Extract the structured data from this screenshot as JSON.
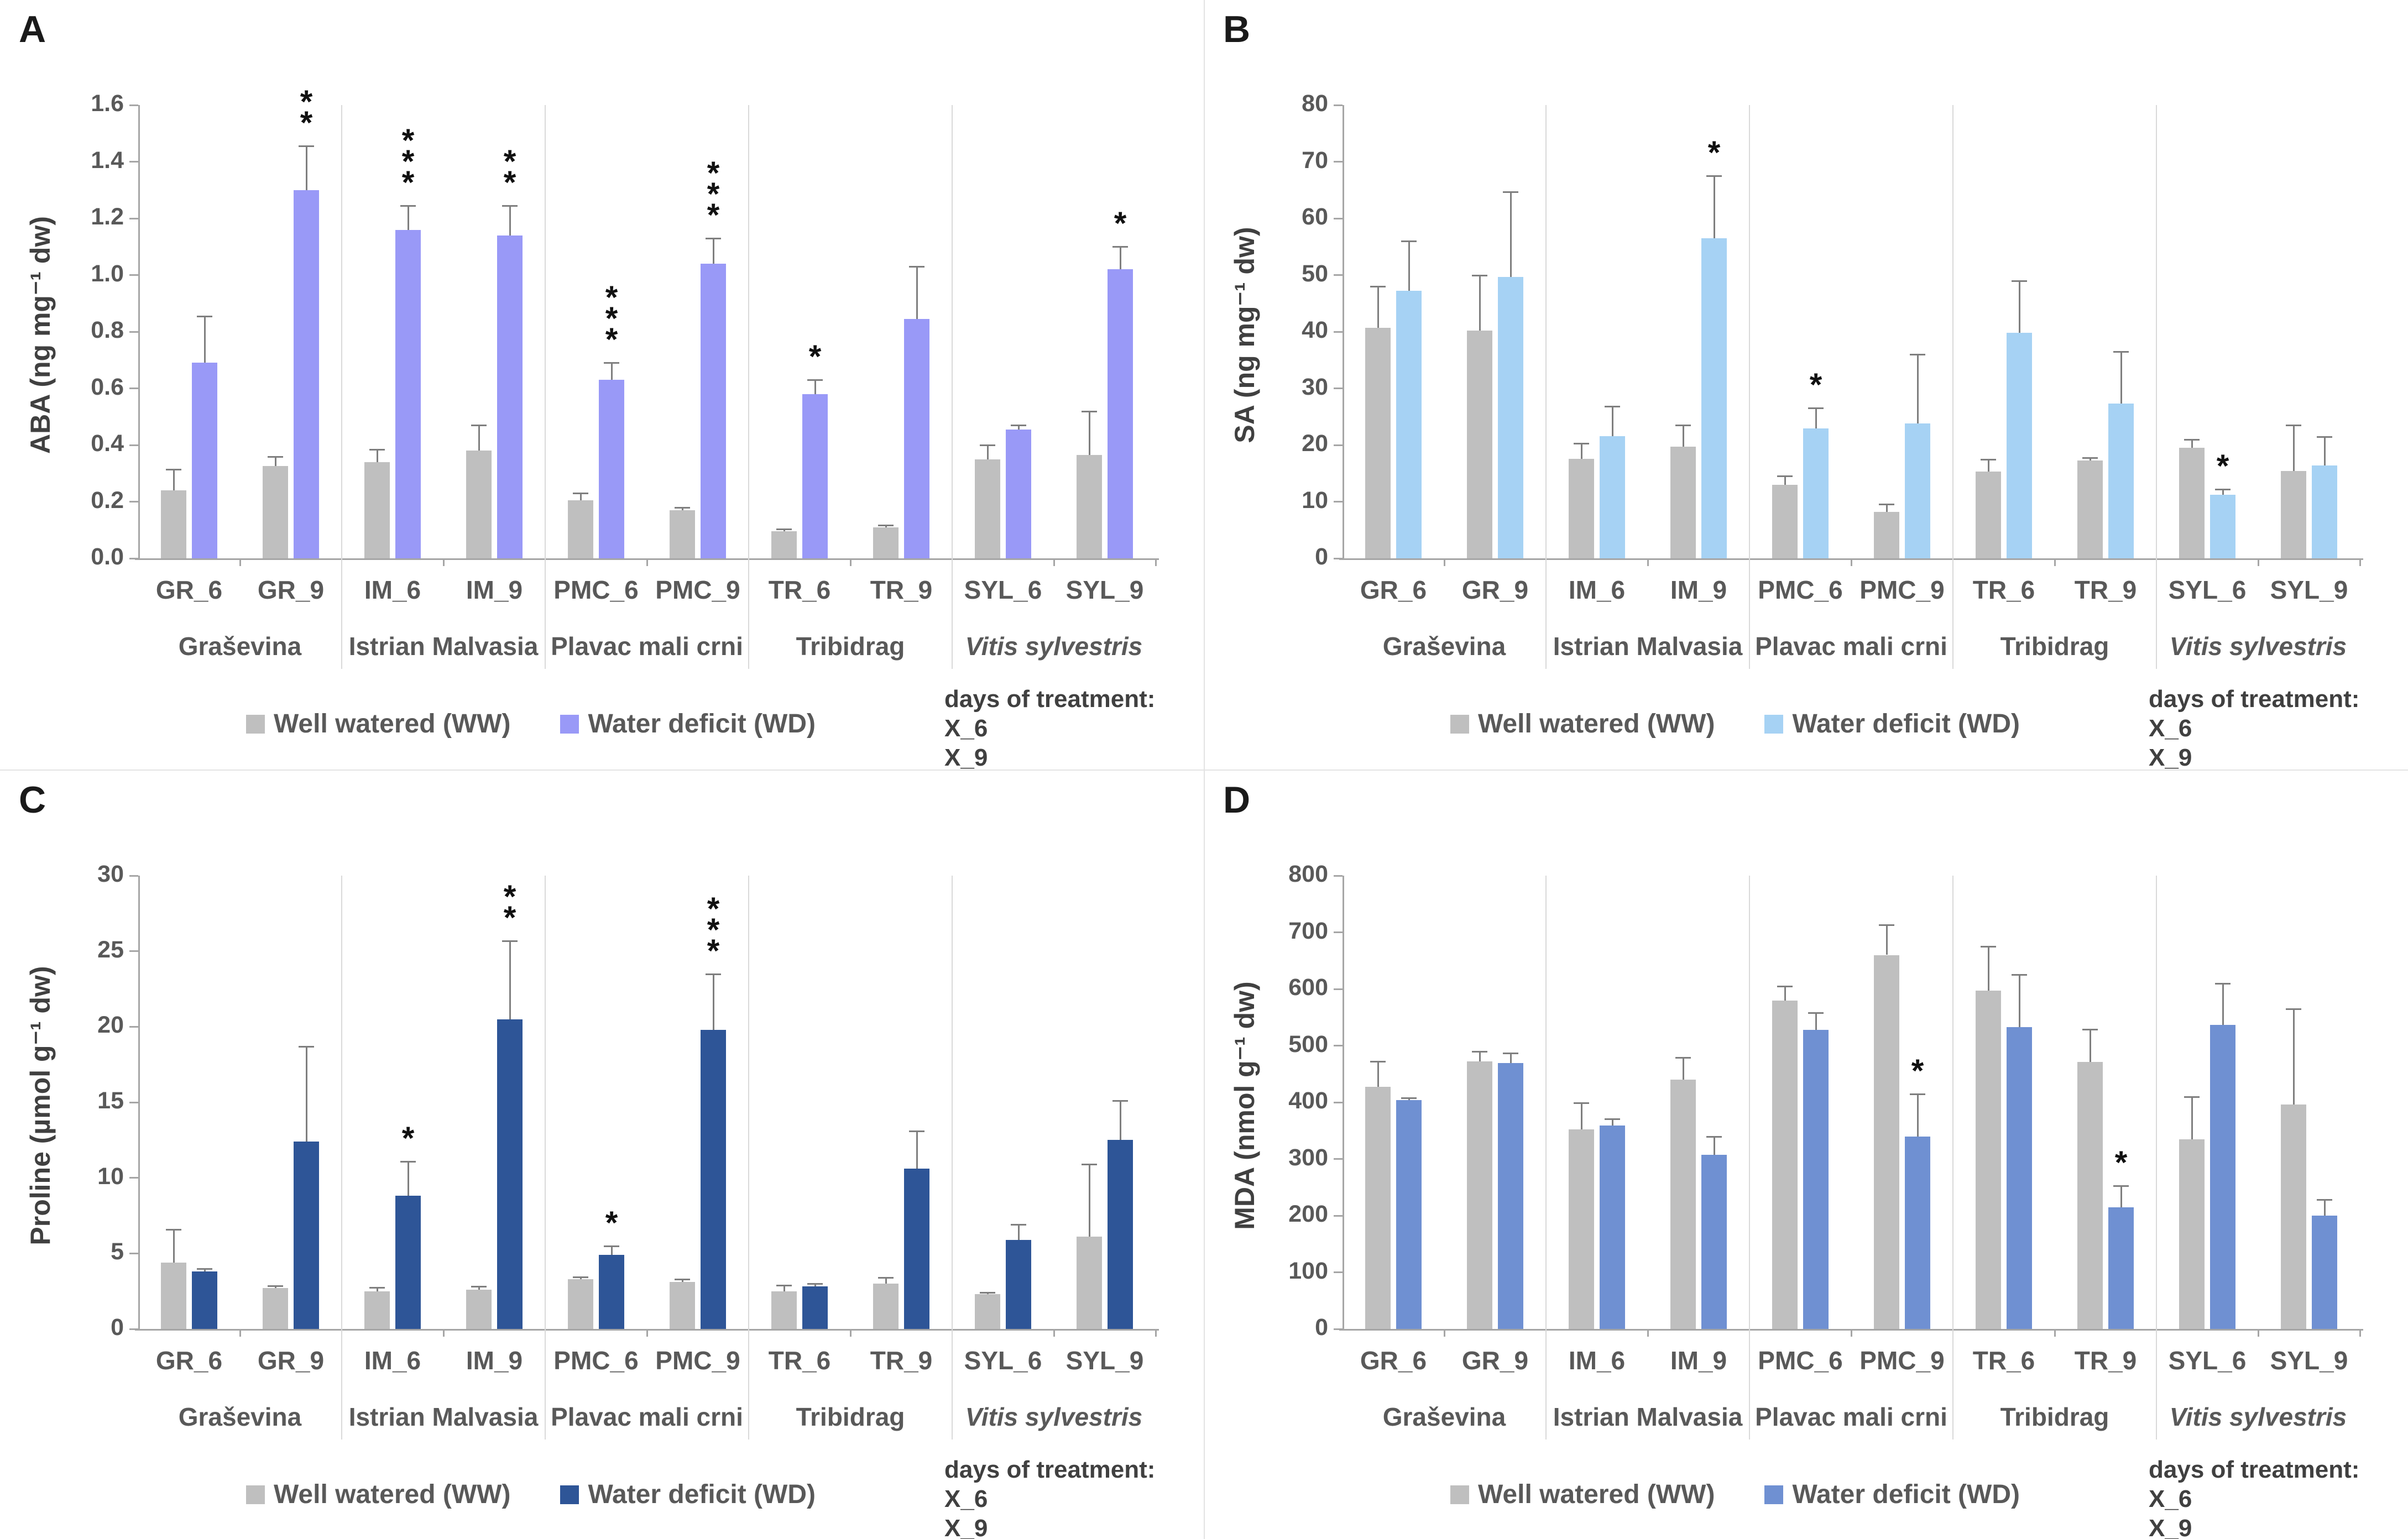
{
  "figure": {
    "legend_ww": "Well watered (WW)",
    "legend_wd": "Water deficit (WD)",
    "days_title": "days of treatment:",
    "days_lines": [
      "X_6",
      "X_9"
    ],
    "colors": {
      "ww": "#BFBFBF",
      "error_bar": "#7F7F7F",
      "axis": "#A6A6A6",
      "divider": "#D9D9D9",
      "label_text": "#595959",
      "star": "#111111"
    }
  },
  "categories": [
    "GR_6",
    "GR_9",
    "IM_6",
    "IM_9",
    "PMC_6",
    "PMC_9",
    "TR_6",
    "TR_9",
    "SYL_6",
    "SYL_9"
  ],
  "groups": [
    {
      "label": "Graševina",
      "italic": false
    },
    {
      "label": "Istrian Malvasia",
      "italic": false
    },
    {
      "label": "Plavac mali crni",
      "italic": false
    },
    {
      "label": "Tribidrag",
      "italic": false
    },
    {
      "label": "Vitis sylvestris",
      "italic": true
    }
  ],
  "chart_data": [
    {
      "panel": "A",
      "type": "bar",
      "ylabel": "ABA (ng mg⁻¹ dw)",
      "ylim": [
        0,
        1.6
      ],
      "ytick": 0.2,
      "tick_decimals": 1,
      "wd_color": "#9999F7",
      "categories": [
        "GR_6",
        "GR_9",
        "IM_6",
        "IM_9",
        "PMC_6",
        "PMC_9",
        "TR_6",
        "TR_9",
        "SYL_6",
        "SYL_9"
      ],
      "series": [
        {
          "name": "Well watered (WW)",
          "values": [
            0.24,
            0.325,
            0.34,
            0.38,
            0.205,
            0.17,
            0.095,
            0.11,
            0.35,
            0.365
          ],
          "errors": [
            0.075,
            0.035,
            0.045,
            0.09,
            0.025,
            0.01,
            0.008,
            0.008,
            0.05,
            0.155
          ]
        },
        {
          "name": "Water deficit (WD)",
          "values": [
            0.69,
            1.3,
            1.16,
            1.14,
            0.63,
            1.04,
            0.58,
            0.845,
            0.455,
            1.02
          ],
          "errors": [
            0.165,
            0.155,
            0.085,
            0.105,
            0.06,
            0.09,
            0.05,
            0.185,
            0.015,
            0.08
          ]
        }
      ],
      "significance": [
        "",
        "**",
        "***",
        "**",
        "***",
        "***",
        "*",
        "",
        "",
        "*"
      ]
    },
    {
      "panel": "B",
      "type": "bar",
      "ylabel": "SA (ng mg⁻¹ dw)",
      "ylim": [
        0,
        80
      ],
      "ytick": 10,
      "tick_decimals": 0,
      "wd_color": "#A6D2F4",
      "categories": [
        "GR_6",
        "GR_9",
        "IM_6",
        "IM_9",
        "PMC_6",
        "PMC_9",
        "TR_6",
        "TR_9",
        "SYL_6",
        "SYL_9"
      ],
      "series": [
        {
          "name": "Well watered (WW)",
          "values": [
            40.7,
            40.2,
            17.6,
            19.7,
            13.0,
            8.2,
            15.3,
            17.3,
            19.5,
            15.4
          ],
          "errors": [
            7.3,
            9.8,
            2.7,
            3.8,
            1.5,
            1.4,
            2.2,
            0.5,
            1.5,
            8.1
          ]
        },
        {
          "name": "Water deficit (WD)",
          "values": [
            47.2,
            49.7,
            21.6,
            56.5,
            22.9,
            23.8,
            39.8,
            27.3,
            11.2,
            16.4
          ],
          "errors": [
            8.8,
            15.0,
            5.2,
            11.0,
            3.6,
            12.2,
            9.2,
            9.2,
            1.0,
            5.1
          ]
        }
      ],
      "significance": [
        "",
        "",
        "",
        "*",
        "*",
        "",
        "",
        "",
        "*",
        ""
      ]
    },
    {
      "panel": "C",
      "type": "bar",
      "ylabel": "Proline (µmol g⁻¹ dw)",
      "ylim": [
        0,
        30
      ],
      "ytick": 5,
      "tick_decimals": 0,
      "wd_color": "#2E5597",
      "categories": [
        "GR_6",
        "GR_9",
        "IM_6",
        "IM_9",
        "PMC_6",
        "PMC_9",
        "TR_6",
        "TR_9",
        "SYL_6",
        "SYL_9"
      ],
      "series": [
        {
          "name": "Well watered (WW)",
          "values": [
            4.4,
            2.7,
            2.5,
            2.6,
            3.3,
            3.1,
            2.5,
            3.0,
            2.3,
            6.1
          ],
          "errors": [
            2.2,
            0.15,
            0.25,
            0.2,
            0.15,
            0.2,
            0.4,
            0.4,
            0.1,
            4.8
          ]
        },
        {
          "name": "Water deficit (WD)",
          "values": [
            3.8,
            12.4,
            8.8,
            20.5,
            4.9,
            19.8,
            2.8,
            10.6,
            5.9,
            12.5
          ],
          "errors": [
            0.2,
            6.3,
            2.3,
            5.2,
            0.6,
            3.7,
            0.2,
            2.5,
            1.0,
            2.6
          ]
        }
      ],
      "significance": [
        "",
        "",
        "*",
        "**",
        "*",
        "***",
        "",
        "",
        "",
        ""
      ]
    },
    {
      "panel": "D",
      "type": "bar",
      "ylabel": "MDA (nmol g⁻¹ dw)",
      "ylim": [
        0,
        800
      ],
      "ytick": 100,
      "tick_decimals": 0,
      "wd_color": "#6F90D2",
      "categories": [
        "GR_6",
        "GR_9",
        "IM_6",
        "IM_9",
        "PMC_6",
        "PMC_9",
        "TR_6",
        "TR_9",
        "SYL_6",
        "SYL_9"
      ],
      "series": [
        {
          "name": "Well watered (WW)",
          "values": [
            427,
            472,
            352,
            440,
            580,
            660,
            597,
            471,
            335,
            396
          ],
          "errors": [
            45,
            18,
            47,
            39,
            25,
            53,
            78,
            58,
            75,
            169
          ]
        },
        {
          "name": "Water deficit (WD)",
          "values": [
            404,
            469,
            359,
            307,
            528,
            340,
            533,
            215,
            537,
            200
          ],
          "errors": [
            4,
            18,
            12,
            33,
            30,
            75,
            92,
            38,
            73,
            28
          ]
        }
      ],
      "significance": [
        "",
        "",
        "",
        "",
        "",
        "*",
        "",
        "*",
        "",
        ""
      ]
    }
  ]
}
